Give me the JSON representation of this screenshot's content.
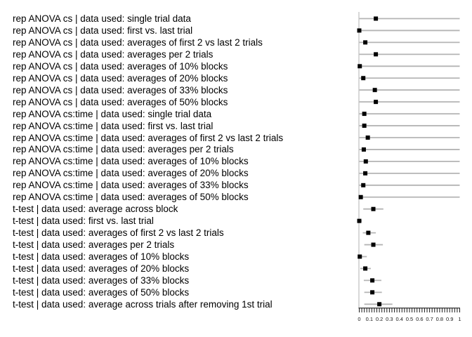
{
  "chart_data": {
    "type": "scatter",
    "subtype": "forest-dot-plot-with-error-bars",
    "title": "",
    "xlabel": "",
    "ylabel": "",
    "legend": "none",
    "grid": "off",
    "x_axis": {
      "range": [
        0,
        1
      ],
      "tick_labels": [
        "0",
        "0.1",
        "0.2",
        "0.3",
        "0.4",
        "0.5",
        "0.6",
        "0.7",
        "0.8",
        "0.9",
        "1"
      ],
      "major_tick_step": 0.1,
      "minor_tick_step": 0.025
    },
    "rows": [
      {
        "label": "rep ANOVA cs | data used: single trial data",
        "group": "rep ANOVA cs",
        "value": 0.165,
        "ci": [
          0,
          1
        ]
      },
      {
        "label": "rep ANOVA cs | data used: first vs. last trial",
        "group": "rep ANOVA cs",
        "value": 0.0,
        "ci": [
          0,
          1
        ]
      },
      {
        "label": "rep ANOVA cs | data used: averages of first 2 vs last 2 trials",
        "group": "rep ANOVA cs",
        "value": 0.06,
        "ci": [
          0,
          1
        ]
      },
      {
        "label": "rep ANOVA cs | data used: averages per 2 trials",
        "group": "rep ANOVA cs",
        "value": 0.165,
        "ci": [
          0,
          1
        ]
      },
      {
        "label": "rep ANOVA cs | data used: averages of 10% blocks",
        "group": "rep ANOVA cs",
        "value": 0.005,
        "ci": [
          0,
          1
        ]
      },
      {
        "label": "rep ANOVA cs | data used: averages of 20% blocks",
        "group": "rep ANOVA cs",
        "value": 0.04,
        "ci": [
          0,
          1
        ]
      },
      {
        "label": "rep ANOVA cs | data used: averages of 33% blocks",
        "group": "rep ANOVA cs",
        "value": 0.155,
        "ci": [
          0,
          1
        ]
      },
      {
        "label": "rep ANOVA cs | data used: averages of 50% blocks",
        "group": "rep ANOVA cs",
        "value": 0.165,
        "ci": [
          0,
          1
        ]
      },
      {
        "label": "rep ANOVA cs:time | data used: single trial data",
        "group": "rep ANOVA cs:time",
        "value": 0.05,
        "ci": [
          0,
          1
        ]
      },
      {
        "label": "rep ANOVA cs:time | data used: first vs. last trial",
        "group": "rep ANOVA cs:time",
        "value": 0.05,
        "ci": [
          0,
          1
        ]
      },
      {
        "label": "rep ANOVA cs:time | data used: averages of first 2 vs last 2 trials",
        "group": "rep ANOVA cs:time",
        "value": 0.085,
        "ci": [
          0,
          1
        ]
      },
      {
        "label": "rep ANOVA cs:time | data used: averages per 2 trials",
        "group": "rep ANOVA cs:time",
        "value": 0.045,
        "ci": [
          0,
          1
        ]
      },
      {
        "label": "rep ANOVA cs:time | data used: averages of 10% blocks",
        "group": "rep ANOVA cs:time",
        "value": 0.065,
        "ci": [
          0,
          1
        ]
      },
      {
        "label": "rep ANOVA cs:time | data used: averages of 20% blocks",
        "group": "rep ANOVA cs:time",
        "value": 0.06,
        "ci": [
          0,
          1
        ]
      },
      {
        "label": "rep ANOVA cs:time | data used: averages of 33% blocks",
        "group": "rep ANOVA cs:time",
        "value": 0.04,
        "ci": [
          0,
          1
        ]
      },
      {
        "label": "rep ANOVA cs:time | data used: averages of 50% blocks",
        "group": "rep ANOVA cs:time",
        "value": 0.015,
        "ci": [
          0,
          1
        ]
      },
      {
        "label": "t-test | data used: average across block",
        "group": "t-test",
        "value": 0.14,
        "ci": [
          0.04,
          0.24
        ]
      },
      {
        "label": "t-test | data used: first vs. last trial",
        "group": "t-test",
        "value": 0.0,
        "ci": [
          -0.01,
          0.025
        ]
      },
      {
        "label": "t-test | data used: averages of first 2 vs last 2 trials",
        "group": "t-test",
        "value": 0.09,
        "ci": [
          0.035,
          0.165
        ]
      },
      {
        "label": "t-test | data used: averages per 2 trials",
        "group": "t-test",
        "value": 0.14,
        "ci": [
          0.05,
          0.235
        ]
      },
      {
        "label": "t-test | data used: averages of 10% blocks",
        "group": "t-test",
        "value": 0.005,
        "ci": [
          -0.01,
          0.075
        ]
      },
      {
        "label": "t-test | data used: averages of 20% blocks",
        "group": "t-test",
        "value": 0.06,
        "ci": [
          0.01,
          0.115
        ]
      },
      {
        "label": "t-test | data used: averages of 33% blocks",
        "group": "t-test",
        "value": 0.13,
        "ci": [
          0.045,
          0.22
        ]
      },
      {
        "label": "t-test | data used: averages of 50% blocks",
        "group": "t-test",
        "value": 0.13,
        "ci": [
          0.05,
          0.225
        ]
      },
      {
        "label": "t-test | data used: average across trials after removing 1st trial",
        "group": "t-test",
        "value": 0.2,
        "ci": [
          0.05,
          0.33
        ]
      }
    ],
    "colors": {
      "marker": "#000000",
      "interval_line": "#b4b4b4",
      "axis_line": "#c8c8c8",
      "tick_color": "#1a1a1a",
      "text": "#000000"
    }
  }
}
